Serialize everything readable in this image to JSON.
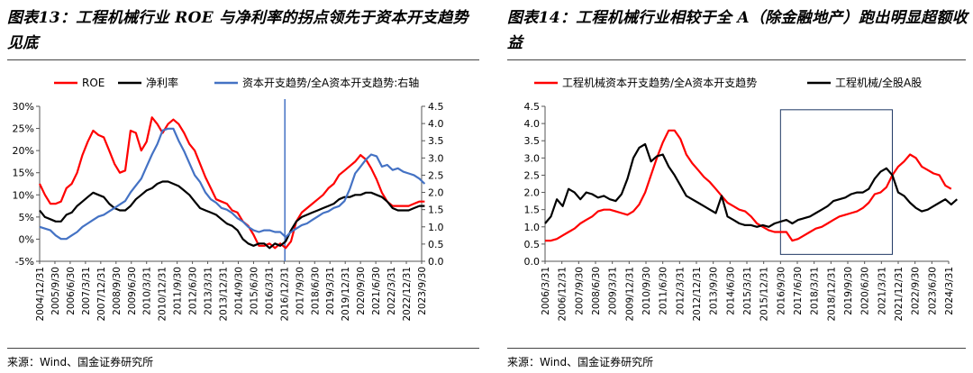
{
  "charts": [
    {
      "title": "图表13：工程机械行业 ROE 与净利率的拐点领先于资本开支趋势见底",
      "source": "来源：Wind、国金证券研究所",
      "chart_data": {
        "type": "line",
        "title": "图表13：工程机械行业 ROE 与净利率的拐点领先于资本开支趋势见底",
        "legend": [
          "ROE",
          "净利率",
          "资本开支趋势/全A资本开支趋势:右轴"
        ],
        "legend_position": "top",
        "grid": false,
        "y_left": {
          "ticks": [
            "-5%",
            "0%",
            "5%",
            "10%",
            "15%",
            "20%",
            "25%",
            "30%"
          ],
          "range": [
            -5,
            30
          ]
        },
        "y_right": {
          "ticks": [
            "0.0",
            "0.5",
            "1.0",
            "1.5",
            "2.0",
            "2.5",
            "3.0",
            "3.5",
            "4.0",
            "4.5"
          ],
          "range": [
            0,
            4.5
          ]
        },
        "x_ticks": [
          "2004/12/31",
          "2005/9/30",
          "2006/6/30",
          "2007/3/31",
          "2007/12/31",
          "2008/9/30",
          "2009/6/30",
          "2010/3/31",
          "2010/12/31",
          "2011/9/30",
          "2012/6/30",
          "2013/3/31",
          "2013/12/31",
          "2014/9/30",
          "2015/6/30",
          "2016/3/31",
          "2016/12/31",
          "2017/9/30",
          "2018/6/30",
          "2019/3/31",
          "2019/12/31",
          "2020/9/30",
          "2021/6/30",
          "2022/3/31",
          "2022/12/31",
          "2023/9/30"
        ],
        "vertical_line": {
          "x": 16.05,
          "color": "#4472C4"
        },
        "series": [
          {
            "name": "ROE",
            "axis": "left",
            "color": "#FF0000",
            "x": [
              0,
              0.35,
              0.7,
              1.05,
              1.4,
              1.75,
              2.1,
              2.45,
              2.8,
              3.15,
              3.5,
              3.85,
              4.2,
              4.55,
              4.9,
              5.25,
              5.6,
              5.95,
              6.3,
              6.65,
              7.0,
              7.35,
              7.7,
              8.05,
              8.4,
              8.75,
              9.1,
              9.45,
              9.8,
              10.15,
              10.5,
              10.85,
              11.2,
              11.55,
              11.9,
              12.25,
              12.6,
              12.95,
              13.3,
              13.65,
              14.0,
              14.35,
              14.7,
              15.05,
              15.4,
              15.75,
              16.1,
              16.45,
              16.8,
              17.15,
              17.5,
              17.85,
              18.2,
              18.55,
              18.9,
              19.25,
              19.6,
              19.95,
              20.3,
              20.65,
              21.0,
              21.35,
              21.7,
              22.05,
              22.4,
              22.75,
              23.1,
              23.45,
              23.8,
              24.15,
              24.5,
              24.85,
              25.2
            ],
            "y": [
              12.5,
              10,
              8,
              8,
              8.5,
              11.5,
              12.5,
              15,
              19,
              22,
              24.5,
              23.5,
              23,
              20,
              17,
              15,
              15.5,
              24.5,
              24,
              20,
              22,
              27.5,
              26,
              24,
              26,
              27,
              26,
              24,
              21.5,
              20,
              17,
              14,
              11.5,
              9,
              8.5,
              8,
              6.5,
              6,
              4,
              3,
              1,
              -1.5,
              -1.5,
              -1,
              -2,
              -1,
              -2,
              -0.5,
              4,
              6,
              7,
              8,
              9,
              10,
              11.5,
              12.5,
              14.5,
              15.5,
              16.5,
              17.5,
              19,
              18,
              16,
              13.5,
              10.5,
              8.5,
              7.5,
              7.5,
              7.5,
              7.5,
              8,
              8.5,
              8.5
            ]
          },
          {
            "name": "净利率",
            "axis": "left",
            "color": "#000000",
            "x": [
              0,
              0.35,
              0.7,
              1.05,
              1.4,
              1.75,
              2.1,
              2.45,
              2.8,
              3.15,
              3.5,
              3.85,
              4.2,
              4.55,
              4.9,
              5.25,
              5.6,
              5.95,
              6.3,
              6.65,
              7.0,
              7.35,
              7.7,
              8.05,
              8.4,
              8.75,
              9.1,
              9.45,
              9.8,
              10.15,
              10.5,
              10.85,
              11.2,
              11.55,
              11.9,
              12.25,
              12.6,
              12.95,
              13.3,
              13.65,
              14.0,
              14.35,
              14.7,
              15.05,
              15.4,
              15.75,
              16.1,
              16.45,
              16.8,
              17.15,
              17.5,
              17.85,
              18.2,
              18.55,
              18.9,
              19.25,
              19.6,
              19.95,
              20.3,
              20.65,
              21.0,
              21.35,
              21.7,
              22.05,
              22.4,
              22.75,
              23.1,
              23.45,
              23.8,
              24.15,
              24.5,
              24.85,
              25.2
            ],
            "y": [
              6.5,
              5,
              4.5,
              4,
              4,
              5.5,
              6,
              7.5,
              8.5,
              9.5,
              10.5,
              10,
              9.5,
              8,
              7,
              6.5,
              6.5,
              7.5,
              9,
              10,
              11,
              11.5,
              12.5,
              13,
              13,
              12.5,
              12,
              11,
              10,
              8.5,
              7,
              6.5,
              6,
              5.5,
              4.5,
              3.5,
              3,
              2,
              0,
              -1,
              -1.5,
              -1,
              -1,
              -2,
              -1,
              -1.5,
              -0.5,
              2,
              4,
              5,
              5.5,
              6,
              6.5,
              7,
              7.5,
              8,
              9,
              9.5,
              9.5,
              10,
              10,
              10.5,
              10.5,
              10,
              9.5,
              8.5,
              7,
              6.5,
              6.5,
              6.5,
              7,
              7.5,
              7.5
            ]
          },
          {
            "name": "资本开支趋势/全A资本开支趋势:右轴",
            "axis": "right",
            "color": "#4472C4",
            "x": [
              0,
              0.35,
              0.7,
              1.05,
              1.4,
              1.75,
              2.1,
              2.45,
              2.8,
              3.15,
              3.5,
              3.85,
              4.2,
              4.55,
              4.9,
              5.25,
              5.6,
              5.95,
              6.3,
              6.65,
              7.0,
              7.35,
              7.7,
              8.05,
              8.4,
              8.75,
              9.1,
              9.45,
              9.8,
              10.15,
              10.5,
              10.85,
              11.2,
              11.55,
              11.9,
              12.25,
              12.6,
              12.95,
              13.3,
              13.65,
              14.0,
              14.35,
              14.7,
              15.05,
              15.4,
              15.75,
              16.1,
              16.45,
              16.8,
              17.15,
              17.5,
              17.85,
              18.2,
              18.55,
              18.9,
              19.25,
              19.6,
              19.95,
              20.3,
              20.65,
              21.0,
              21.35,
              21.7,
              22.05,
              22.4,
              22.75,
              23.1,
              23.45,
              23.8,
              24.15,
              24.5,
              24.85,
              25.2
            ],
            "y": [
              1.0,
              0.95,
              0.9,
              0.75,
              0.65,
              0.65,
              0.75,
              0.85,
              1.0,
              1.1,
              1.2,
              1.3,
              1.35,
              1.45,
              1.55,
              1.65,
              1.75,
              2.0,
              2.2,
              2.4,
              2.75,
              3.1,
              3.4,
              3.8,
              3.85,
              3.85,
              3.5,
              3.2,
              2.85,
              2.5,
              2.3,
              2.0,
              1.8,
              1.7,
              1.55,
              1.5,
              1.4,
              1.25,
              1.15,
              1.0,
              0.9,
              0.85,
              0.9,
              0.9,
              0.85,
              0.85,
              0.7,
              0.85,
              0.95,
              1.05,
              1.1,
              1.2,
              1.3,
              1.4,
              1.45,
              1.55,
              1.6,
              1.75,
              2.1,
              2.55,
              2.75,
              2.95,
              3.1,
              3.05,
              2.75,
              2.8,
              2.65,
              2.7,
              2.6,
              2.55,
              2.5,
              2.4,
              2.25
            ]
          }
        ]
      }
    },
    {
      "title": "图表14：工程机械行业相较于全 A（除金融地产）跑出明显超额收益",
      "source": "来源：Wind、国金证券研究所",
      "chart_data": {
        "type": "line",
        "title": "图表14：工程机械行业相较于全 A（除金融地产）跑出明显超额收益",
        "legend": [
          "工程机械资本开支趋势/全A资本开支趋势",
          "工程机械/全股A股"
        ],
        "legend_position": "top",
        "grid": false,
        "y_left": {
          "ticks": [
            "0.0",
            "0.5",
            "1.0",
            "1.5",
            "2.0",
            "2.5",
            "3.0",
            "3.5",
            "4.0",
            "4.5"
          ],
          "range": [
            0,
            4.5
          ]
        },
        "x_ticks": [
          "2006/3/31",
          "2006/12/31",
          "2007/9/30",
          "2008/6/30",
          "2009/3/31",
          "2009/12/31",
          "2010/9/30",
          "2011/6/30",
          "2012/3/31",
          "2012/12/31",
          "2013/9/30",
          "2014/6/30",
          "2015/3/31",
          "2015/12/31",
          "2016/9/30",
          "2017/6/30",
          "2018/3/31",
          "2018/12/31",
          "2019/9/30",
          "2020/6/30",
          "2021/3/31",
          "2021/12/31",
          "2022/9/30",
          "2023/6/30",
          "2024/3/31"
        ],
        "highlight_box": {
          "x0": 14.0,
          "x1": 20.65,
          "y0": 0.2,
          "y1": 4.4
        },
        "series": [
          {
            "name": "工程机械资本开支趋势/全A资本开支趋势",
            "color": "#FF0000",
            "x": [
              0,
              0.35,
              0.7,
              1.05,
              1.4,
              1.75,
              2.1,
              2.45,
              2.8,
              3.15,
              3.5,
              3.85,
              4.2,
              4.55,
              4.9,
              5.25,
              5.6,
              5.95,
              6.3,
              6.65,
              7.0,
              7.35,
              7.7,
              8.05,
              8.4,
              8.75,
              9.1,
              9.45,
              9.8,
              10.15,
              10.5,
              10.85,
              11.2,
              11.55,
              11.9,
              12.25,
              12.6,
              12.95,
              13.3,
              13.65,
              14.0,
              14.35,
              14.7,
              15.05,
              15.4,
              15.75,
              16.1,
              16.45,
              16.8,
              17.15,
              17.5,
              17.85,
              18.2,
              18.55,
              18.9,
              19.25,
              19.6,
              19.95,
              20.3,
              20.65,
              21.0,
              21.35,
              21.7,
              22.05,
              22.4,
              22.75,
              23.1,
              23.45,
              23.8,
              24.15
            ],
            "y": [
              0.6,
              0.6,
              0.65,
              0.75,
              0.85,
              0.95,
              1.1,
              1.2,
              1.3,
              1.45,
              1.5,
              1.5,
              1.45,
              1.4,
              1.35,
              1.45,
              1.65,
              2.0,
              2.5,
              3.0,
              3.45,
              3.8,
              3.8,
              3.55,
              3.1,
              2.85,
              2.65,
              2.45,
              2.3,
              2.1,
              1.9,
              1.7,
              1.6,
              1.5,
              1.45,
              1.3,
              1.1,
              1.0,
              0.9,
              0.85,
              0.85,
              0.85,
              0.6,
              0.65,
              0.75,
              0.85,
              0.95,
              1.0,
              1.1,
              1.2,
              1.3,
              1.35,
              1.4,
              1.45,
              1.55,
              1.7,
              1.95,
              2.0,
              2.15,
              2.5,
              2.75,
              2.9,
              3.1,
              3.0,
              2.75,
              2.65,
              2.55,
              2.5,
              2.2,
              2.1
            ]
          },
          {
            "name": "工程机械/全股A股",
            "color": "#000000",
            "x": [
              0,
              0.35,
              0.7,
              1.05,
              1.4,
              1.75,
              2.1,
              2.45,
              2.8,
              3.15,
              3.5,
              3.85,
              4.2,
              4.55,
              4.9,
              5.25,
              5.6,
              5.95,
              6.3,
              6.65,
              7.0,
              7.35,
              7.7,
              8.05,
              8.4,
              8.75,
              9.1,
              9.45,
              9.8,
              10.15,
              10.5,
              10.85,
              11.2,
              11.55,
              11.9,
              12.25,
              12.6,
              12.95,
              13.3,
              13.65,
              14.0,
              14.35,
              14.7,
              15.05,
              15.4,
              15.75,
              16.1,
              16.45,
              16.8,
              17.15,
              17.5,
              17.85,
              18.2,
              18.55,
              18.9,
              19.25,
              19.6,
              19.95,
              20.3,
              20.65,
              21.0,
              21.35,
              21.7,
              22.05,
              22.4,
              22.75,
              23.1,
              23.45,
              23.8,
              24.15,
              24.5
            ],
            "y": [
              1.1,
              1.3,
              1.8,
              1.6,
              2.1,
              2.0,
              1.8,
              2.0,
              1.95,
              1.85,
              1.9,
              1.8,
              1.75,
              1.95,
              2.4,
              3.0,
              3.3,
              3.4,
              2.9,
              3.05,
              3.1,
              2.75,
              2.5,
              2.2,
              1.9,
              1.8,
              1.7,
              1.6,
              1.5,
              1.4,
              1.9,
              1.3,
              1.2,
              1.1,
              1.05,
              1.05,
              1.0,
              1.05,
              1.0,
              1.1,
              1.15,
              1.2,
              1.1,
              1.2,
              1.25,
              1.3,
              1.4,
              1.5,
              1.6,
              1.75,
              1.8,
              1.85,
              1.95,
              2.0,
              2.0,
              2.1,
              2.4,
              2.6,
              2.7,
              2.5,
              2.0,
              1.9,
              1.7,
              1.55,
              1.45,
              1.5,
              1.6,
              1.7,
              1.8,
              1.65,
              1.8
            ]
          }
        ]
      }
    }
  ]
}
